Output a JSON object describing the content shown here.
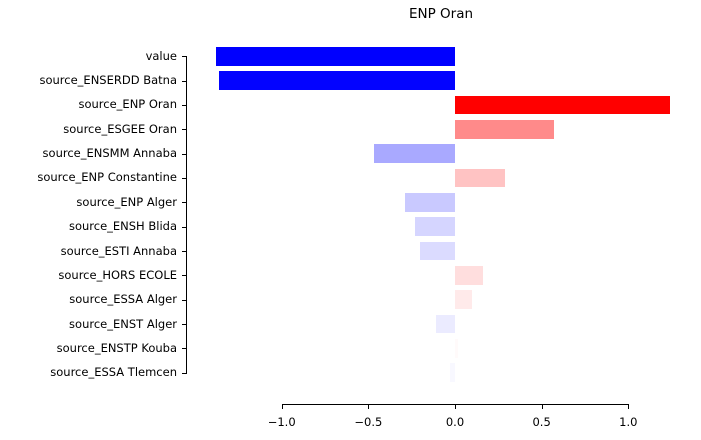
{
  "chart_data": {
    "type": "bar",
    "orientation": "horizontal",
    "title": "ENP Oran",
    "categories": [
      "value",
      "source_ENSERDD Batna",
      "source_ENP Oran",
      "source_ESGEE Oran",
      "source_ENSMM Annaba",
      "source_ENP Constantine",
      "source_ENP Alger",
      "source_ENSH Blida",
      "source_ESTI Annaba",
      "source_HORS ECOLE",
      "source_ESSA Alger",
      "source_ENST Alger",
      "source_ENSTP Kouba",
      "source_ESSA Tlemcen"
    ],
    "values": [
      -1.38,
      -1.36,
      1.24,
      0.57,
      -0.47,
      0.29,
      -0.29,
      -0.23,
      -0.2,
      0.16,
      0.1,
      -0.11,
      0.02,
      -0.03
    ],
    "bar_colors": [
      "#0000FF",
      "#0303FF",
      "#FF0000",
      "#FF8A8A",
      "#A9A9FF",
      "#FFC3C3",
      "#C9C9FF",
      "#D5D5FF",
      "#DBDBFF",
      "#FFDEDE",
      "#FFEAEA",
      "#EBEBFF",
      "#FFFAFA",
      "#F8F8FF"
    ],
    "colormap": "bwr",
    "x_ticks": [
      -1.0,
      -0.5,
      0.0,
      0.5,
      1.0
    ],
    "x_tick_labels": [
      "−1.0",
      "−0.5",
      "0.0",
      "0.5",
      "1.0"
    ],
    "xlim": [
      -1.55,
      1.37
    ],
    "grid": false,
    "legend": null,
    "axis_color": "#000000",
    "background_color": "#ffffff"
  }
}
